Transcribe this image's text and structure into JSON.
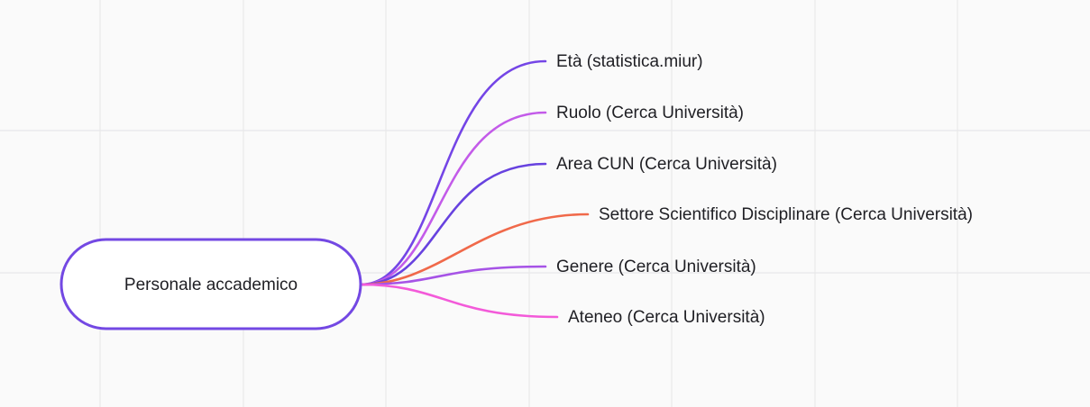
{
  "root": {
    "label": "Personale accademico"
  },
  "children": [
    {
      "label": "Età (statistica.miur)",
      "color": "#7445e6"
    },
    {
      "label": "Ruolo (Cerca Università)",
      "color": "#c35be9"
    },
    {
      "label": "Area CUN (Cerca Università)",
      "color": "#6742df"
    },
    {
      "label": "Settore Scientifico Disciplinare (Cerca Università)",
      "color": "#f0694a"
    },
    {
      "label": "Genere (Cerca Università)",
      "color": "#a653e6"
    },
    {
      "label": "Ateneo (Cerca Università)",
      "color": "#f35ad9"
    }
  ]
}
